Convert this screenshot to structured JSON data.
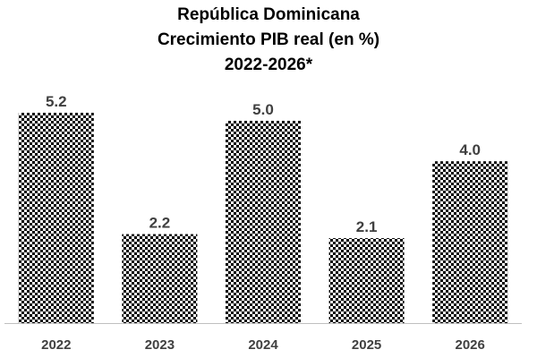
{
  "chart_data": {
    "type": "bar",
    "title": [
      "República Dominicana",
      "Crecimiento PIB real (en %)",
      "2022-2026*"
    ],
    "categories": [
      "2022",
      "2023",
      "2024",
      "2025",
      "2026"
    ],
    "values": [
      5.2,
      2.2,
      5.0,
      2.1,
      4.0
    ],
    "value_labels": [
      "5.2",
      "2.2",
      "5.0",
      "2.1",
      "4.0"
    ],
    "xlabel": "",
    "ylabel": "",
    "ylim": [
      0,
      5.2
    ],
    "grid": false,
    "legend": "none",
    "colors": {
      "bar_fill_pattern": "checkered",
      "pattern_dark": "#000000",
      "pattern_light": "#ffffff",
      "axis_line": "#bfbfbf",
      "label_text": "#404040",
      "title_text": "#000000"
    }
  }
}
